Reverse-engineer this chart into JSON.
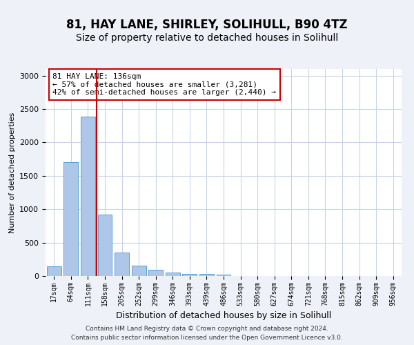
{
  "title1": "81, HAY LANE, SHIRLEY, SOLIHULL, B90 4TZ",
  "title2": "Size of property relative to detached houses in Solihull",
  "xlabel": "Distribution of detached houses by size in Solihull",
  "ylabel": "Number of detached properties",
  "bar_values": [
    140,
    1700,
    2390,
    920,
    350,
    160,
    90,
    55,
    35,
    30,
    25,
    0,
    0,
    0,
    0,
    0,
    0,
    0,
    0,
    0,
    0
  ],
  "bar_labels": [
    "17sqm",
    "64sqm",
    "111sqm",
    "158sqm",
    "205sqm",
    "252sqm",
    "299sqm",
    "346sqm",
    "393sqm",
    "439sqm",
    "486sqm",
    "533sqm",
    "580sqm",
    "627sqm",
    "674sqm",
    "721sqm",
    "768sqm",
    "815sqm",
    "862sqm",
    "909sqm",
    "956sqm"
  ],
  "bar_color": "#aec6e8",
  "bar_edge_color": "#5a9fd4",
  "ylim": [
    0,
    3100
  ],
  "yticks": [
    0,
    500,
    1000,
    1500,
    2000,
    2500,
    3000
  ],
  "vline_x_idx": 2,
  "vline_color": "#cc0000",
  "annotation_text": "81 HAY LANE: 136sqm\n← 57% of detached houses are smaller (3,281)\n42% of semi-detached houses are larger (2,440) →",
  "annotation_box_color": "#ffffff",
  "annotation_box_edge": "#cc0000",
  "footer1": "Contains HM Land Registry data © Crown copyright and database right 2024.",
  "footer2": "Contains public sector information licensed under the Open Government Licence v3.0.",
  "bg_color": "#eef2f8",
  "plot_bg_color": "#ffffff",
  "title1_fontsize": 12,
  "title2_fontsize": 10,
  "grid_color": "#c8d4e4"
}
